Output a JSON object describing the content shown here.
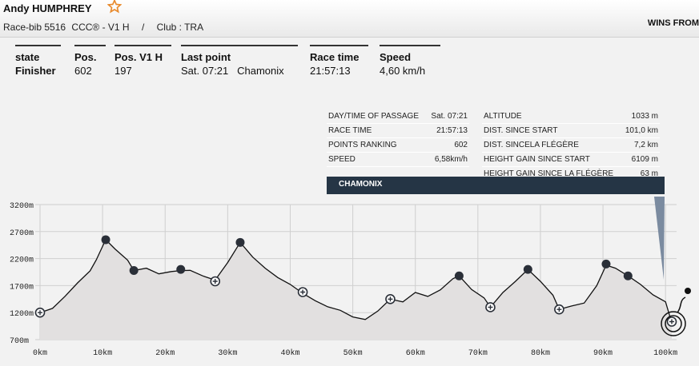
{
  "runner": {
    "name": "Andy HUMPHREY",
    "race_bib": "Race-bib 5516",
    "category": "CCC® - V1 H",
    "separator": "/",
    "club": "Club : TRA",
    "wins_label": "WINS FROM",
    "favorite_icon": "star-outline-icon",
    "accent_color": "#e8892b"
  },
  "stats": [
    {
      "label": "state",
      "value": "Finisher",
      "bold": true
    },
    {
      "label": "Pos.",
      "value": "602"
    },
    {
      "label": "Pos. V1 H",
      "value": "197"
    },
    {
      "label": "Last point",
      "value": "Sat. 07:21   Chamonix"
    },
    {
      "label": "Race time",
      "value": "21:57:13"
    },
    {
      "label": "Speed",
      "value": "4,60 km/h"
    }
  ],
  "passage_left": [
    {
      "k": "DAY/TIME OF PASSAGE",
      "v": "Sat. 07:21"
    },
    {
      "k": "RACE TIME",
      "v": "21:57:13"
    },
    {
      "k": "POINTS RANKING",
      "v": "602"
    },
    {
      "k": "SPEED",
      "v": "6,58km/h"
    }
  ],
  "passage_right": [
    {
      "k": "ALTITUDE",
      "v": "1033 m"
    },
    {
      "k": "DIST. SINCE START",
      "v": "101,0 km"
    },
    {
      "k": "DIST. SINCELA FLÉGÈRE",
      "v": "7,2 km"
    },
    {
      "k": "HEIGHT GAIN SINCE START",
      "v": "6109 m"
    },
    {
      "k": "HEIGHT GAIN SINCE LA FLÉGÈRE",
      "v": "63 m"
    }
  ],
  "checkpoint_banner": "CHAMONIX",
  "chart_data": {
    "type": "area",
    "x_ticks": [
      "0km",
      "10km",
      "20km",
      "30km",
      "40km",
      "50km",
      "60km",
      "70km",
      "80km",
      "90km",
      "100km"
    ],
    "y_ticks": [
      "3200m",
      "2700m",
      "2200m",
      "1700m",
      "1200m",
      "700m"
    ],
    "xlim": [
      0,
      101
    ],
    "ylim": [
      700,
      3200
    ],
    "grid": true,
    "profile": [
      [
        0,
        1200
      ],
      [
        2,
        1300
      ],
      [
        4,
        1480
      ],
      [
        6,
        1750
      ],
      [
        8,
        1950
      ],
      [
        9,
        2200
      ],
      [
        10.5,
        2550
      ],
      [
        12,
        2400
      ],
      [
        14,
        2150
      ],
      [
        15,
        1980
      ],
      [
        17,
        2000
      ],
      [
        19,
        1940
      ],
      [
        21,
        1960
      ],
      [
        22.5,
        2000
      ],
      [
        24,
        1960
      ],
      [
        26,
        1880
      ],
      [
        28,
        1780
      ],
      [
        30,
        2150
      ],
      [
        32,
        2500
      ],
      [
        34,
        2250
      ],
      [
        36,
        2000
      ],
      [
        38,
        1850
      ],
      [
        40,
        1700
      ],
      [
        42,
        1580
      ],
      [
        44,
        1420
      ],
      [
        46,
        1330
      ],
      [
        48,
        1220
      ],
      [
        50,
        1120
      ],
      [
        52,
        1050
      ],
      [
        54,
        1250
      ],
      [
        56,
        1450
      ],
      [
        58,
        1420
      ],
      [
        60,
        1550
      ],
      [
        62,
        1500
      ],
      [
        64,
        1600
      ],
      [
        66,
        1850
      ],
      [
        67,
        1880
      ],
      [
        69,
        1650
      ],
      [
        71,
        1450
      ],
      [
        72,
        1300
      ],
      [
        74,
        1550
      ],
      [
        76,
        1800
      ],
      [
        78,
        2000
      ],
      [
        80,
        1800
      ],
      [
        82,
        1500
      ],
      [
        83,
        1260
      ],
      [
        85,
        1300
      ],
      [
        87,
        1400
      ],
      [
        89,
        1700
      ],
      [
        90.5,
        2100
      ],
      [
        92,
        2000
      ],
      [
        94,
        1880
      ],
      [
        96,
        1700
      ],
      [
        98,
        1550
      ],
      [
        100,
        1400
      ],
      [
        101,
        1033
      ]
    ],
    "checkpoints_filled": [
      [
        10.5,
        2550
      ],
      [
        15,
        1980
      ],
      [
        22.5,
        2000
      ],
      [
        32,
        2500
      ],
      [
        67,
        1880
      ],
      [
        78,
        2000
      ],
      [
        90.5,
        2100
      ],
      [
        94,
        1880
      ]
    ],
    "checkpoints_open": [
      [
        0,
        1200
      ],
      [
        28,
        1780
      ],
      [
        42,
        1580
      ],
      [
        56,
        1450
      ],
      [
        72,
        1300
      ],
      [
        83,
        1260
      ],
      [
        101,
        1033
      ]
    ],
    "fill_color": "#e2e0e0",
    "line_color": "#111111"
  }
}
